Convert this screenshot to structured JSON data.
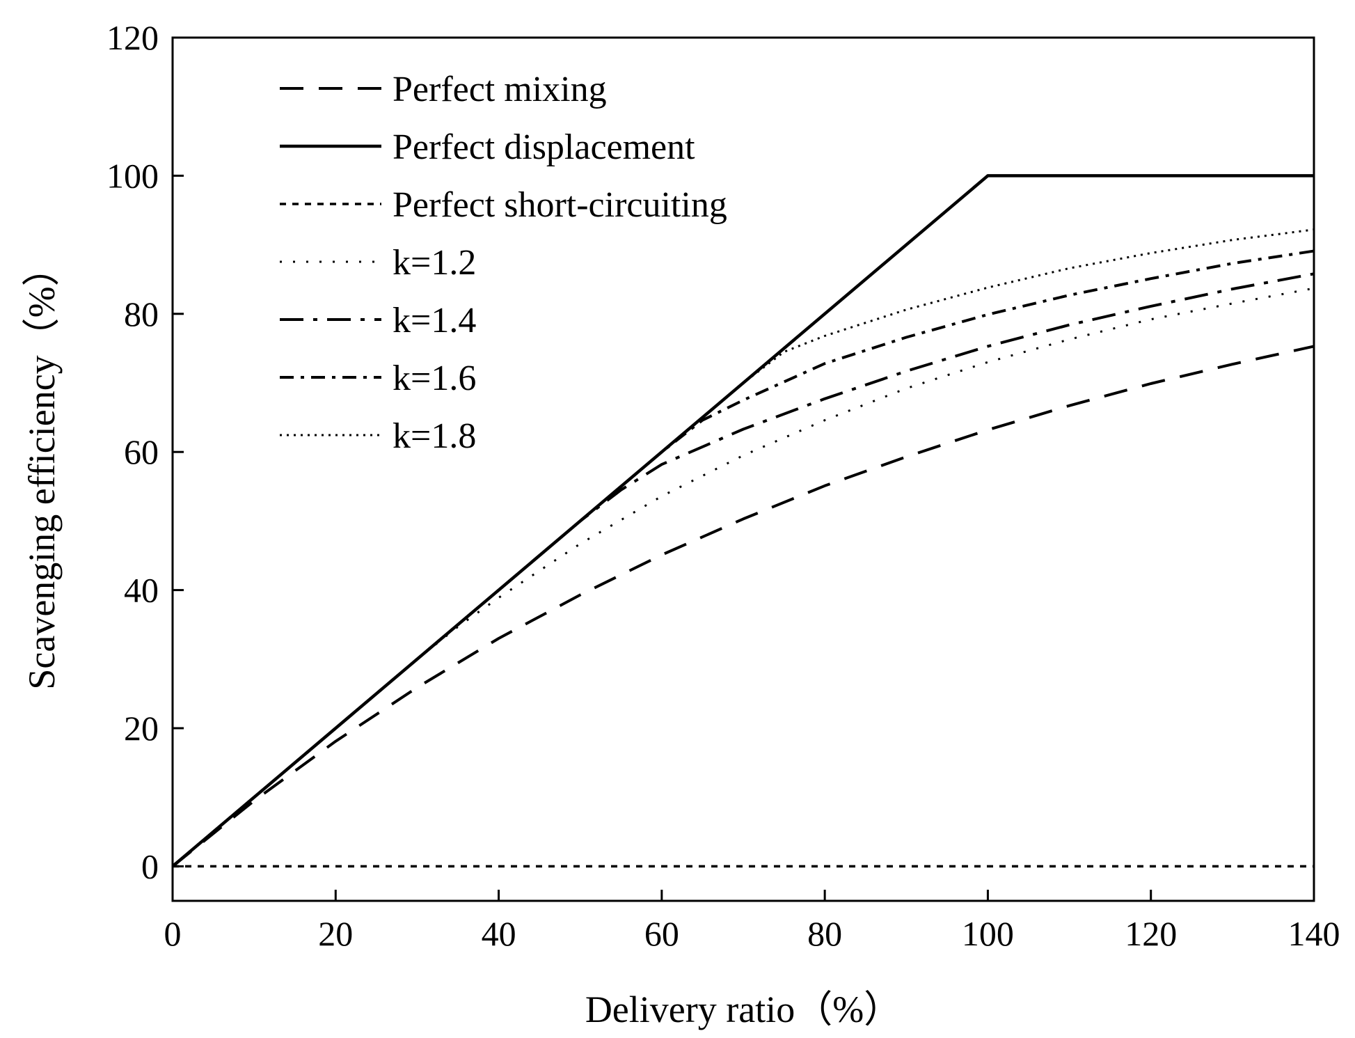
{
  "chart_data": {
    "type": "line",
    "title": "",
    "xlabel": "Delivery ratio（%）",
    "ylabel": "Scavenging efficiency（%）",
    "xlim": [
      0,
      140
    ],
    "ylim": [
      -5,
      120
    ],
    "xticks": [
      0,
      20,
      40,
      60,
      80,
      100,
      120,
      140
    ],
    "yticks": [
      0,
      20,
      40,
      60,
      80,
      100,
      120
    ],
    "xtick_labels": [
      "0",
      "20",
      "40",
      "60",
      "80",
      "100",
      "120",
      "140"
    ],
    "ytick_labels": [
      "0",
      "20",
      "40",
      "60",
      "80",
      "100",
      "120"
    ],
    "grid": false,
    "legend_position": "top-left",
    "series": [
      {
        "name": "Perfect mixing",
        "style": "dashed",
        "x": [
          0,
          10,
          20,
          30,
          40,
          50,
          60,
          70,
          80,
          90,
          100,
          110,
          120,
          130,
          140
        ],
        "y": [
          0,
          9.5,
          18.1,
          25.9,
          33.0,
          39.3,
          45.1,
          50.3,
          55.1,
          59.3,
          63.2,
          66.7,
          69.9,
          72.7,
          75.3
        ]
      },
      {
        "name": "Perfect displacement",
        "style": "solid",
        "x": [
          0,
          100,
          140
        ],
        "y": [
          0,
          100,
          100
        ]
      },
      {
        "name": "Perfect short-circuiting",
        "style": "short-dashed",
        "x": [
          0,
          140
        ],
        "y": [
          0,
          0
        ]
      },
      {
        "name": "k=1.2",
        "style": "dotted-sparse",
        "x": [
          0,
          10,
          20,
          30,
          35,
          40,
          50,
          60,
          70,
          80,
          90,
          100,
          110,
          120,
          130,
          140
        ],
        "y": [
          0,
          10,
          20,
          30,
          34.7,
          38.9,
          46.7,
          53.6,
          59.5,
          64.6,
          69.2,
          73.0,
          76.3,
          79.2,
          81.5,
          83.7
        ]
      },
      {
        "name": "k=1.4",
        "style": "long-dash-dot",
        "x": [
          0,
          10,
          20,
          30,
          40,
          50,
          55,
          60,
          70,
          80,
          90,
          100,
          110,
          120,
          130,
          140
        ],
        "y": [
          0,
          10,
          20,
          30,
          40,
          50,
          54.5,
          58.2,
          63.3,
          67.7,
          71.7,
          75.3,
          78.4,
          81.1,
          83.6,
          85.8
        ]
      },
      {
        "name": "k=1.6",
        "style": "dash-dot",
        "x": [
          0,
          10,
          20,
          30,
          40,
          50,
          60,
          65,
          70,
          80,
          90,
          100,
          110,
          120,
          130,
          140
        ],
        "y": [
          0,
          10,
          20,
          30,
          40,
          50,
          60,
          64.6,
          67.5,
          72.8,
          76.6,
          79.9,
          82.7,
          85.1,
          87.3,
          89.1
        ]
      },
      {
        "name": "k=1.8",
        "style": "dotted-dense",
        "x": [
          0,
          10,
          20,
          30,
          40,
          50,
          60,
          70,
          75,
          80,
          90,
          100,
          110,
          120,
          130,
          140
        ],
        "y": [
          0,
          10,
          20,
          30,
          40,
          50,
          60,
          70,
          74.5,
          76.8,
          80.6,
          83.8,
          86.6,
          88.8,
          90.7,
          92.2
        ]
      }
    ]
  }
}
